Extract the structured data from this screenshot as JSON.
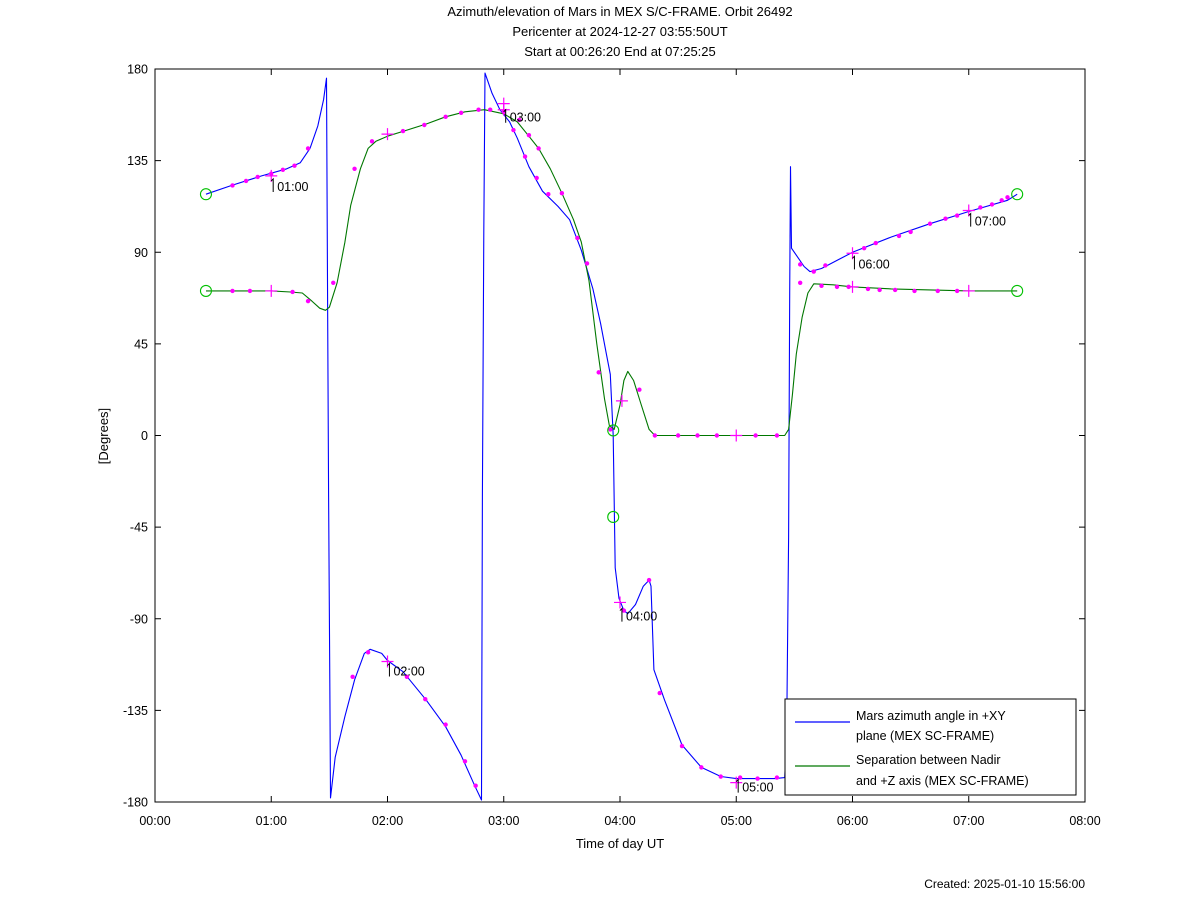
{
  "chart_data": {
    "type": "line",
    "title": [
      "Azimuth/elevation of Mars in MEX S/C-FRAME.  Orbit 26492",
      "Pericenter at 2024-12-27 03:55:50UT",
      "Start at 00:26:20 End at 07:25:25"
    ],
    "xlabel": "Time of day UT",
    "ylabel": "[Degrees]",
    "xlim": [
      0,
      480
    ],
    "ylim": [
      -180,
      180
    ],
    "xticks": [
      0,
      60,
      120,
      180,
      240,
      300,
      360,
      420,
      480
    ],
    "xtick_labels": [
      "00:00",
      "01:00",
      "02:00",
      "03:00",
      "04:00",
      "05:00",
      "06:00",
      "07:00",
      "08:00"
    ],
    "yticks": [
      -180,
      -135,
      -90,
      -45,
      0,
      45,
      90,
      135,
      180
    ],
    "ytick_labels": [
      "-180",
      "-135",
      "-90",
      "-45",
      "0",
      "45",
      "90",
      "135",
      "180"
    ],
    "grid": false,
    "legend_position": "bottom-right",
    "series": [
      {
        "name": "Mars azimuth angle in +XY plane (MEX SC-FRAME)",
        "legend_lines": [
          "Mars azimuth angle in +XY",
          "plane (MEX SC-FRAME)"
        ],
        "color": "#0000ff",
        "points": [
          [
            26.3,
            118.5
          ],
          [
            40,
            123
          ],
          [
            55,
            127.5
          ],
          [
            68,
            131
          ],
          [
            75,
            134
          ],
          [
            80,
            141
          ],
          [
            84,
            152
          ],
          [
            87,
            165
          ],
          [
            88.5,
            175.5
          ],
          [
            88.5,
            175.5
          ],
          [
            89,
            85
          ],
          [
            89.6,
            -30
          ],
          [
            90.2,
            -120
          ],
          [
            90.6,
            -178
          ],
          [
            90.6,
            -178
          ],
          [
            93,
            -158
          ],
          [
            98,
            -138
          ],
          [
            103,
            -120
          ],
          [
            108,
            -107
          ],
          [
            111,
            -105
          ],
          [
            117,
            -107
          ],
          [
            120,
            -110.5
          ],
          [
            128,
            -116
          ],
          [
            140,
            -130
          ],
          [
            150,
            -143
          ],
          [
            158,
            -157
          ],
          [
            165,
            -172
          ],
          [
            168.5,
            -179
          ],
          [
            168.5,
            -179
          ],
          [
            169,
            -30
          ],
          [
            169.7,
            100
          ],
          [
            170.3,
            178
          ],
          [
            170.3,
            178
          ],
          [
            174,
            168
          ],
          [
            178,
            160
          ],
          [
            183,
            154
          ],
          [
            187,
            146
          ],
          [
            193,
            132
          ],
          [
            200,
            120
          ],
          [
            208,
            112.5
          ],
          [
            214,
            106
          ],
          [
            220,
            91
          ],
          [
            226,
            72
          ],
          [
            230,
            55
          ],
          [
            233,
            40
          ],
          [
            235,
            30
          ],
          [
            236.5,
            0
          ],
          [
            237.5,
            -65
          ],
          [
            239.5,
            -80
          ],
          [
            242,
            -86
          ],
          [
            244,
            -87.5
          ],
          [
            248,
            -83
          ],
          [
            252,
            -74
          ],
          [
            255,
            -71
          ],
          [
            256,
            -74
          ],
          [
            257.5,
            -115
          ],
          [
            263,
            -130
          ],
          [
            272,
            -152
          ],
          [
            282,
            -163
          ],
          [
            292,
            -167.5
          ],
          [
            300,
            -168.5
          ],
          [
            320,
            -168.5
          ],
          [
            325,
            -168
          ],
          [
            326,
            -150
          ],
          [
            327,
            -50
          ],
          [
            327.6,
            70
          ],
          [
            328,
            132
          ],
          [
            328.5,
            92
          ],
          [
            335,
            83
          ],
          [
            338,
            80.5
          ],
          [
            344,
            82
          ],
          [
            352,
            86
          ],
          [
            360,
            90
          ],
          [
            380,
            97.5
          ],
          [
            400,
            104
          ],
          [
            420,
            110
          ],
          [
            440,
            115.5
          ],
          [
            445,
            118.5
          ]
        ]
      },
      {
        "name": "Separation between Nadir and +Z axis (MEX SC-FRAME)",
        "legend_lines": [
          "Separation between Nadir",
          "and +Z axis (MEX SC-FRAME)"
        ],
        "color": "#007700",
        "points": [
          [
            26.3,
            71
          ],
          [
            45,
            71
          ],
          [
            60,
            71
          ],
          [
            70,
            70.5
          ],
          [
            76,
            70
          ],
          [
            81,
            66
          ],
          [
            85,
            62.5
          ],
          [
            88,
            61.5
          ],
          [
            90,
            63
          ],
          [
            94,
            75
          ],
          [
            98,
            95
          ],
          [
            101,
            113
          ],
          [
            106,
            131
          ],
          [
            110,
            141
          ],
          [
            114,
            144.5
          ],
          [
            120,
            147
          ],
          [
            130,
            150
          ],
          [
            140,
            153
          ],
          [
            150,
            156.5
          ],
          [
            160,
            159
          ],
          [
            170,
            160
          ],
          [
            180,
            158
          ],
          [
            187,
            154
          ],
          [
            193,
            147
          ],
          [
            198,
            141
          ],
          [
            204,
            131
          ],
          [
            210,
            119
          ],
          [
            216,
            106
          ],
          [
            220,
            95
          ],
          [
            224,
            76
          ],
          [
            228,
            45
          ],
          [
            232,
            18
          ],
          [
            234.5,
            5
          ],
          [
            237,
            3
          ],
          [
            240,
            15
          ],
          [
            242,
            27
          ],
          [
            244,
            31.5
          ],
          [
            247,
            27
          ],
          [
            251,
            15
          ],
          [
            255,
            3
          ],
          [
            258,
            0
          ],
          [
            270,
            0
          ],
          [
            300,
            0
          ],
          [
            325,
            0
          ],
          [
            327,
            3
          ],
          [
            329,
            20
          ],
          [
            331,
            40
          ],
          [
            334,
            58
          ],
          [
            337,
            70
          ],
          [
            340,
            74.5
          ],
          [
            350,
            74
          ],
          [
            360,
            73
          ],
          [
            380,
            72
          ],
          [
            400,
            71.5
          ],
          [
            420,
            71
          ],
          [
            440,
            71
          ],
          [
            445,
            71
          ]
        ]
      }
    ],
    "markers": {
      "dot_color": "#ff00ff",
      "circle_color": "#00c000",
      "azimuth_dots": [
        [
          40,
          122.8
        ],
        [
          47,
          125
        ],
        [
          53,
          127
        ],
        [
          60,
          128.6
        ],
        [
          66,
          130.5
        ],
        [
          72,
          132.5
        ],
        [
          79,
          141
        ],
        [
          102,
          -118.5
        ],
        [
          110,
          -106.5
        ],
        [
          130,
          -118.5
        ],
        [
          139.5,
          -129.5
        ],
        [
          150,
          -142
        ],
        [
          160,
          -160
        ],
        [
          165.5,
          -172
        ],
        [
          185,
          150
        ],
        [
          191,
          137
        ],
        [
          197,
          126.5
        ],
        [
          203,
          118.5
        ],
        [
          218,
          97
        ],
        [
          242,
          -86
        ],
        [
          255,
          -71
        ],
        [
          260.5,
          -126.5
        ],
        [
          272,
          -152.5
        ],
        [
          282,
          -163
        ],
        [
          292,
          -167.5
        ],
        [
          302,
          -168
        ],
        [
          311,
          -168.5
        ],
        [
          321,
          -168
        ],
        [
          333,
          84
        ],
        [
          340,
          80.5
        ],
        [
          346,
          83.5
        ],
        [
          366,
          92
        ],
        [
          372,
          94.5
        ],
        [
          384,
          98
        ],
        [
          390,
          100
        ],
        [
          400,
          104
        ],
        [
          408,
          106.5
        ],
        [
          414,
          108
        ],
        [
          426,
          112
        ],
        [
          432,
          113.5
        ],
        [
          437,
          115.5
        ],
        [
          440,
          117
        ]
      ],
      "separation_dots": [
        [
          40,
          71
        ],
        [
          49,
          71
        ],
        [
          71,
          70.5
        ],
        [
          79,
          66
        ],
        [
          92,
          75
        ],
        [
          103,
          131
        ],
        [
          112,
          144.5
        ],
        [
          128,
          149.5
        ],
        [
          139,
          152.5
        ],
        [
          150,
          156.5
        ],
        [
          158,
          158.5
        ],
        [
          167,
          160
        ],
        [
          173,
          160
        ],
        [
          180,
          159
        ],
        [
          188,
          155
        ],
        [
          193,
          147.5
        ],
        [
          198,
          141
        ],
        [
          210,
          119
        ],
        [
          223,
          84.5
        ],
        [
          229,
          31
        ],
        [
          235,
          3
        ],
        [
          250,
          22.5
        ],
        [
          258,
          0
        ],
        [
          270,
          0
        ],
        [
          280,
          0
        ],
        [
          290,
          0
        ],
        [
          310,
          0
        ],
        [
          321,
          0
        ],
        [
          333,
          75
        ],
        [
          344,
          73.5
        ],
        [
          352,
          73
        ],
        [
          358,
          73
        ],
        [
          368,
          72
        ],
        [
          374,
          71.5
        ],
        [
          382,
          71.5
        ],
        [
          392,
          71
        ],
        [
          404,
          71
        ],
        [
          414,
          71
        ]
      ],
      "plus_marks": [
        [
          60,
          127.5
        ],
        [
          60,
          71
        ],
        [
          120,
          148
        ],
        [
          120,
          -111
        ],
        [
          180,
          160
        ],
        [
          180,
          163
        ],
        [
          300,
          0
        ],
        [
          300,
          -170.5
        ],
        [
          360,
          89.5
        ],
        [
          360,
          73
        ],
        [
          420,
          110.5
        ],
        [
          420,
          71
        ],
        [
          240,
          -82
        ],
        [
          241,
          17
        ]
      ],
      "circle_marks": [
        [
          26.3,
          118.5
        ],
        [
          26.3,
          71
        ],
        [
          445,
          118.5
        ],
        [
          445,
          71
        ],
        [
          236.5,
          2.5
        ],
        [
          236.5,
          -40
        ]
      ]
    },
    "annotations": [
      {
        "label": "01:00",
        "x": 61,
        "y": 126
      },
      {
        "label": "02:00",
        "x": 121,
        "y": -112
      },
      {
        "label": "03:00",
        "x": 181,
        "y": 160
      },
      {
        "label": "04:00",
        "x": 241,
        "y": -85
      },
      {
        "label": "05:00",
        "x": 301,
        "y": -169
      },
      {
        "label": "06:00",
        "x": 361,
        "y": 88
      },
      {
        "label": "07:00",
        "x": 421,
        "y": 109
      }
    ]
  },
  "footer": {
    "created": "Created: 2025-01-10 15:56:00"
  }
}
